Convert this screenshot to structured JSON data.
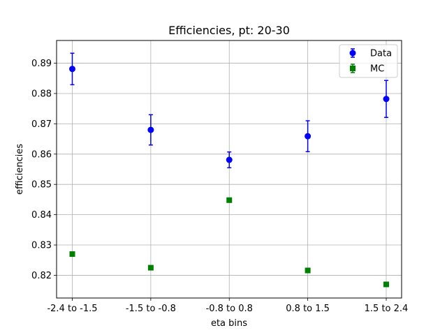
{
  "chart_data": {
    "type": "scatter",
    "title": "Efficiencies, pt: 20-30",
    "xlabel": "eta bins",
    "ylabel": "efficiencies",
    "categories": [
      "-2.4 to -1.5",
      "-1.5 to -0.8",
      "-0.8 to 0.8",
      "0.8 to 1.5",
      "1.5 to 2.4"
    ],
    "ylim": [
      0.8125,
      0.8975
    ],
    "yticks": [
      0.82,
      0.83,
      0.84,
      0.85,
      0.86,
      0.87,
      0.88,
      0.89
    ],
    "ytick_labels": [
      "0.82",
      "0.83",
      "0.84",
      "0.85",
      "0.86",
      "0.87",
      "0.88",
      "0.89"
    ],
    "grid": true,
    "legend_position": "top-right",
    "series": [
      {
        "name": "Data",
        "marker": "circle",
        "color": "#0000ff",
        "values": [
          0.8881,
          0.868,
          0.8581,
          0.8659,
          0.8782
        ],
        "errors": [
          0.0052,
          0.005,
          0.0026,
          0.0051,
          0.0061
        ]
      },
      {
        "name": "MC",
        "marker": "square",
        "color": "#008000",
        "values": [
          0.827,
          0.8225,
          0.8448,
          0.8216,
          0.817
        ],
        "errors": [
          0.0004,
          0.0004,
          0.0002,
          0.0004,
          0.0004
        ]
      }
    ]
  }
}
